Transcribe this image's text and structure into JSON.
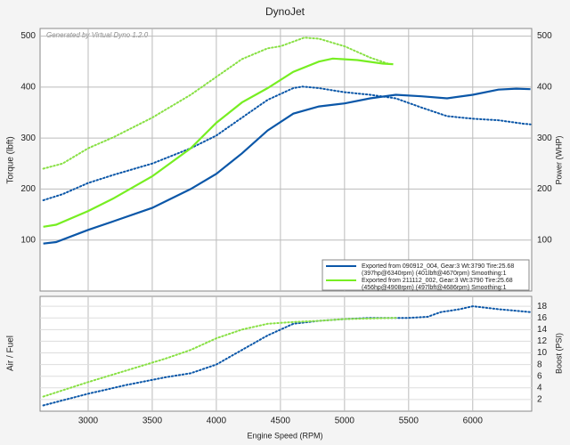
{
  "chart_data": [
    {
      "type": "line",
      "title": "DynoJet",
      "annotation": "Generated by Virtual Dyno 1.2.0",
      "ylabel": "Torque (lbft)",
      "y2label": "Power (WHP)",
      "xlim": [
        2625,
        6460
      ],
      "xticks": [
        3000,
        3500,
        4000,
        4500,
        5000,
        5500,
        6000
      ],
      "ylim": [
        0,
        515
      ],
      "yticks": [
        100,
        200,
        300,
        400,
        500
      ],
      "y2lim": [
        0,
        515
      ],
      "y2ticks": [
        100,
        200,
        300,
        400,
        500
      ],
      "grid": true,
      "legend": [
        {
          "color": "#0b57a8",
          "lines": [
            "Exported from 090912_004, Gear:3 Wt:3790 Tire:25.68",
            "(397hp@6340rpm) (401lbft@4670rpm) Smoothing:1"
          ]
        },
        {
          "color": "#77ee22",
          "lines": [
            "Exported from 211112_002, Gear:3 Wt:3790 Tire:25.68",
            "(456hp@4908rpm) (497lbft@4686rpm) Smoothing:1"
          ]
        }
      ],
      "series": [
        {
          "color": "#0b57a8",
          "style": "dotted",
          "x": [
            2650,
            2800,
            3000,
            3200,
            3500,
            3800,
            4000,
            4200,
            4400,
            4600,
            4670,
            4800,
            5000,
            5200,
            5400,
            5600,
            5800,
            6000,
            6200,
            6400,
            6450
          ],
          "values": [
            178,
            190,
            212,
            228,
            250,
            280,
            305,
            340,
            375,
            398,
            401,
            398,
            390,
            385,
            378,
            360,
            343,
            338,
            335,
            328,
            327
          ]
        },
        {
          "color": "#0b57a8",
          "style": "solid",
          "axis": "y2",
          "x": [
            2650,
            2750,
            3000,
            3200,
            3500,
            3800,
            4000,
            4200,
            4400,
            4600,
            4800,
            5000,
            5200,
            5400,
            5600,
            5800,
            6000,
            6200,
            6340,
            6450
          ],
          "values": [
            93,
            96,
            120,
            137,
            163,
            200,
            230,
            270,
            315,
            348,
            362,
            368,
            378,
            385,
            382,
            378,
            385,
            395,
            397,
            396
          ]
        },
        {
          "color": "#88e044",
          "style": "dotted",
          "x": [
            2650,
            2800,
            3000,
            3200,
            3500,
            3800,
            4000,
            4200,
            4400,
            4500,
            4686,
            4800,
            5000,
            5200,
            5350
          ],
          "values": [
            240,
            250,
            280,
            302,
            340,
            385,
            420,
            455,
            476,
            480,
            497,
            495,
            480,
            458,
            445
          ]
        },
        {
          "color": "#77ee22",
          "style": "solid",
          "axis": "y2",
          "x": [
            2650,
            2750,
            3000,
            3200,
            3500,
            3800,
            4000,
            4200,
            4400,
            4600,
            4800,
            4908,
            5100,
            5300,
            5380
          ],
          "values": [
            126,
            130,
            157,
            182,
            225,
            280,
            330,
            370,
            398,
            430,
            450,
            456,
            453,
            446,
            445
          ]
        }
      ]
    },
    {
      "type": "line",
      "ylabel": "Air / Fuel",
      "y2label": "Boost (PSI)",
      "xlabel": "Engine Speed (RPM)",
      "xlim": [
        2625,
        6460
      ],
      "xticks": [
        3000,
        3500,
        4000,
        4500,
        5000,
        5500,
        6000
      ],
      "y2lim": [
        0,
        19.7
      ],
      "y2ticks": [
        2,
        4,
        6,
        8,
        10,
        12,
        14,
        16,
        18
      ],
      "grid": true,
      "series": [
        {
          "color": "#0b57a8",
          "style": "dotted",
          "axis": "y2",
          "x": [
            2650,
            3000,
            3300,
            3600,
            3800,
            4000,
            4200,
            4400,
            4600,
            4800,
            5000,
            5200,
            5500,
            5650,
            5750,
            5900,
            6000,
            6200,
            6450
          ],
          "values": [
            1,
            3,
            4.5,
            5.8,
            6.5,
            8,
            10.5,
            13,
            15,
            15.5,
            15.8,
            16,
            16,
            16.2,
            17,
            17.5,
            18,
            17.5,
            17
          ]
        },
        {
          "color": "#88e044",
          "style": "dotted",
          "axis": "y2",
          "x": [
            2650,
            3000,
            3300,
            3600,
            3800,
            4000,
            4200,
            4400,
            4600,
            4800,
            5000,
            5400
          ],
          "values": [
            2.5,
            5,
            7,
            9,
            10.5,
            12.5,
            14,
            15,
            15.3,
            15.5,
            15.8,
            16
          ]
        }
      ]
    }
  ]
}
